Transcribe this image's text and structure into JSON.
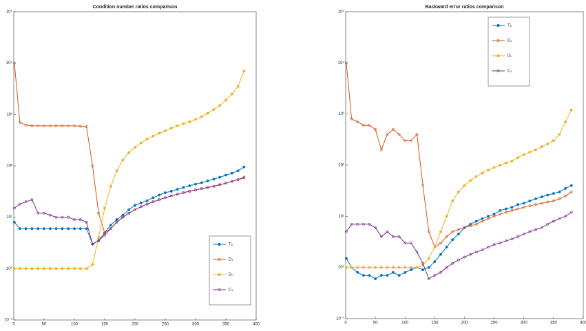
{
  "chart_data": [
    {
      "type": "line",
      "title": "Condition number ratios comparison",
      "yscale": "log",
      "legend": "lower right",
      "x": [
        1,
        10,
        20,
        30,
        40,
        50,
        60,
        70,
        80,
        90,
        100,
        110,
        120,
        130,
        140,
        150,
        160,
        170,
        180,
        190,
        200,
        210,
        220,
        230,
        240,
        250,
        260,
        270,
        280,
        290,
        300,
        310,
        320,
        330,
        340,
        350,
        360,
        370,
        380
      ],
      "xlim": [
        0,
        400
      ],
      "xticks": [
        0,
        50,
        100,
        150,
        200,
        250,
        300,
        350,
        400
      ],
      "ylim": [
        0.1,
        100000
      ],
      "yticks": [
        {
          "value": 0.1,
          "label": "10⁻¹"
        },
        {
          "value": 1,
          "label": "10⁰"
        },
        {
          "value": 10,
          "label": "10¹"
        },
        {
          "value": 100,
          "label": "10²"
        },
        {
          "value": 1000,
          "label": "10³"
        },
        {
          "value": 10000,
          "label": "10⁴"
        },
        {
          "value": 100000,
          "label": "10⁵"
        }
      ],
      "series": [
        {
          "name": "Tₚ",
          "color": "#0072bd",
          "values": [
            8,
            6,
            6,
            6,
            6,
            6,
            6,
            6,
            6,
            6,
            6,
            6,
            6,
            3,
            3.5,
            5,
            7,
            9,
            11,
            14,
            17,
            19,
            21,
            24,
            27,
            30,
            32,
            35,
            38,
            41,
            44,
            47,
            51,
            55,
            60,
            66,
            72,
            80,
            95
          ]
        },
        {
          "name": "D₁",
          "color": "#d95319",
          "values": [
            10000,
            700,
            620,
            600,
            600,
            600,
            600,
            600,
            600,
            600,
            600,
            590,
            580,
            100,
            12,
            5,
            6,
            8,
            10,
            12,
            14,
            16,
            18,
            20,
            22,
            24,
            26,
            28,
            30,
            32,
            34,
            36,
            38,
            40,
            43,
            46,
            50,
            54,
            58
          ]
        },
        {
          "name": "Dₖ",
          "color": "#edb120",
          "values": [
            1,
            1,
            1,
            1,
            1,
            1,
            1,
            1,
            1,
            1,
            1,
            1,
            1,
            1.2,
            4,
            15,
            40,
            80,
            130,
            180,
            230,
            280,
            330,
            380,
            430,
            480,
            540,
            600,
            660,
            720,
            800,
            900,
            1050,
            1250,
            1500,
            1900,
            2500,
            3500,
            7000
          ]
        },
        {
          "name": "C₁",
          "color": "#7e2f8e",
          "values": [
            15,
            18,
            20,
            22,
            12,
            12,
            11,
            10,
            10,
            10,
            9,
            9,
            8,
            3,
            3.5,
            4.5,
            6,
            8,
            10,
            12,
            14,
            16,
            18,
            20,
            22,
            24,
            26,
            28,
            30,
            32,
            34,
            36,
            38,
            40,
            43,
            46,
            50,
            54,
            60
          ]
        }
      ]
    },
    {
      "type": "line",
      "title": "Backward error ratios comparison",
      "yscale": "log",
      "legend": "upper right",
      "x": [
        1,
        10,
        20,
        30,
        40,
        50,
        60,
        70,
        80,
        90,
        100,
        110,
        120,
        130,
        140,
        150,
        160,
        170,
        180,
        190,
        200,
        210,
        220,
        230,
        240,
        250,
        260,
        270,
        280,
        290,
        300,
        310,
        320,
        330,
        340,
        350,
        360,
        370,
        380
      ],
      "xlim": [
        0,
        400
      ],
      "xticks": [
        0,
        50,
        100,
        150,
        200,
        250,
        300,
        350,
        400
      ],
      "ylim": [
        0.1,
        100000
      ],
      "yticks": [
        {
          "value": 0.1,
          "label": "10⁻¹"
        },
        {
          "value": 1,
          "label": "10⁰"
        },
        {
          "value": 10,
          "label": "10¹"
        },
        {
          "value": 100,
          "label": "10²"
        },
        {
          "value": 1000,
          "label": "10³"
        },
        {
          "value": 10000,
          "label": "10⁴"
        },
        {
          "value": 100000,
          "label": "10⁵"
        }
      ],
      "series": [
        {
          "name": "Tₚ",
          "color": "#0072bd",
          "values": [
            1.5,
            1,
            0.8,
            0.7,
            0.7,
            0.6,
            0.7,
            0.7,
            0.8,
            0.7,
            0.8,
            0.9,
            1,
            0.9,
            1,
            1.3,
            1.8,
            2.5,
            3.5,
            4.5,
            6,
            7,
            8,
            9,
            10,
            11,
            13,
            14,
            15,
            17,
            18,
            20,
            22,
            24,
            26,
            28,
            30,
            35,
            40
          ]
        },
        {
          "name": "D₁",
          "color": "#d95319",
          "values": [
            10000,
            800,
            700,
            600,
            600,
            500,
            200,
            400,
            500,
            400,
            300,
            300,
            400,
            40,
            5,
            2.5,
            3,
            4,
            5,
            5.5,
            6,
            6.5,
            7,
            8,
            9,
            10,
            11,
            12,
            13,
            14,
            15,
            16,
            17,
            18,
            19,
            20,
            22,
            25,
            30
          ]
        },
        {
          "name": "Dₖ",
          "color": "#edb120",
          "values": [
            1,
            1,
            1,
            1,
            1,
            1,
            1,
            1,
            1,
            1,
            1,
            1,
            1,
            1.1,
            1.5,
            2.5,
            5,
            10,
            20,
            30,
            40,
            50,
            60,
            70,
            80,
            90,
            100,
            110,
            120,
            140,
            160,
            180,
            200,
            230,
            260,
            300,
            400,
            700,
            1200
          ]
        },
        {
          "name": "C₁",
          "color": "#7e2f8e",
          "values": [
            5,
            7,
            7,
            7,
            7,
            6,
            4,
            5,
            4,
            4,
            3,
            3,
            2,
            1.2,
            0.6,
            0.7,
            0.8,
            1,
            1.2,
            1.4,
            1.6,
            1.8,
            2,
            2.2,
            2.5,
            2.8,
            3,
            3.3,
            3.6,
            4,
            4.5,
            5,
            5.5,
            6,
            7,
            8,
            9,
            10,
            12
          ]
        }
      ]
    }
  ]
}
